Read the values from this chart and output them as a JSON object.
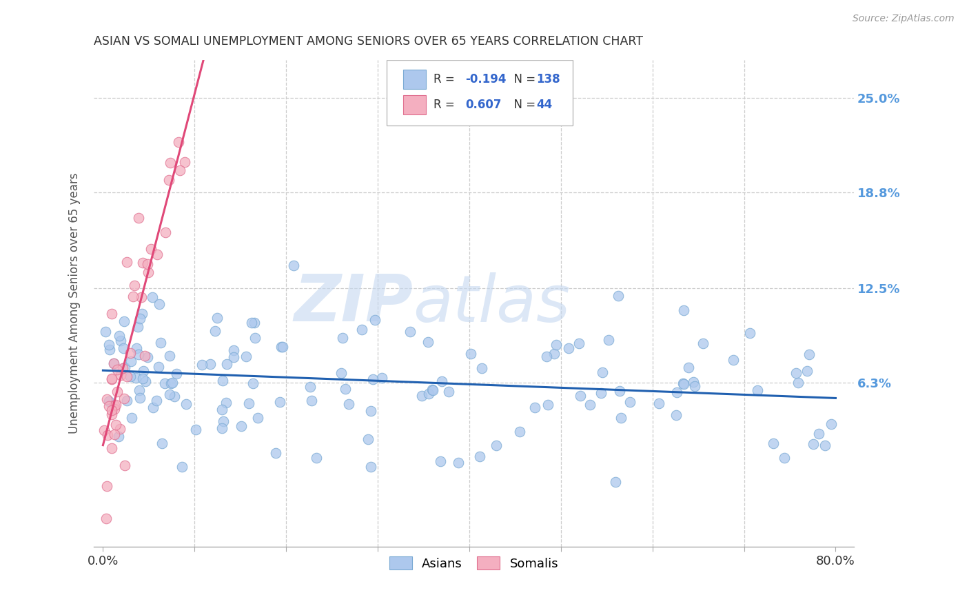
{
  "title": "ASIAN VS SOMALI UNEMPLOYMENT AMONG SENIORS OVER 65 YEARS CORRELATION CHART",
  "source": "Source: ZipAtlas.com",
  "ylabel": "Unemployment Among Seniors over 65 years",
  "yticks_labels": [
    "25.0%",
    "18.8%",
    "12.5%",
    "6.3%"
  ],
  "ytick_values": [
    0.25,
    0.188,
    0.125,
    0.063
  ],
  "watermark_zip": "ZIP",
  "watermark_atlas": "atlas",
  "asian_color": "#adc8ed",
  "asian_edge_color": "#7aaad4",
  "somali_color": "#f4afc0",
  "somali_edge_color": "#e07090",
  "asian_line_color": "#2060b0",
  "somali_line_color": "#e04878",
  "background_color": "#ffffff",
  "xlim": [
    -0.01,
    0.82
  ],
  "ylim": [
    -0.045,
    0.275
  ],
  "legend_R_color": "#3366cc",
  "legend_N_color": "#3366cc",
  "legend_box_color": "#dddddd",
  "grid_color": "#cccccc",
  "title_color": "#333333",
  "axis_label_color": "#555555",
  "right_tick_color": "#5599dd"
}
